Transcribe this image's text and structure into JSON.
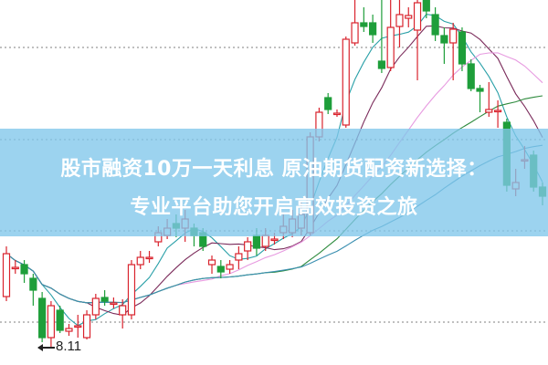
{
  "banner": {
    "line1": "股市融资10万一天利息 原油期货配资新选择：",
    "line2": "专业平台助您开启高效投资之旅"
  },
  "chart_data": {
    "type": "candlestick",
    "ylim": [
      7.92,
      11.92
    ],
    "grid": "dotted-horizontal",
    "gridlines": [
      11.4,
      10.39,
      9.39,
      8.39
    ],
    "annotation": {
      "text": "8.11",
      "value": 8.11,
      "candle_index": 5
    },
    "colors": {
      "up": "#d9232d",
      "down": "#1e9e3a",
      "grid": "#999999",
      "ma": [
        "#2aa0a8",
        "#7a2a5a",
        "#e79ae0",
        "#2e8b3e",
        "#3a8fb0"
      ]
    },
    "ma_periods": [
      5,
      10,
      20,
      30,
      45
    ],
    "ohlc": [
      [
        8.67,
        9.14,
        9.22,
        8.62
      ],
      [
        8.99,
        8.99,
        9.07,
        8.92
      ],
      [
        9.02,
        8.92,
        9.07,
        8.82
      ],
      [
        8.87,
        8.74,
        8.92,
        8.57
      ],
      [
        8.65,
        8.22,
        8.72,
        8.17
      ],
      [
        8.22,
        8.57,
        8.62,
        8.11
      ],
      [
        8.52,
        8.3,
        8.57,
        8.27
      ],
      [
        8.29,
        8.32,
        8.37,
        8.24
      ],
      [
        8.35,
        8.35,
        8.47,
        8.22
      ],
      [
        8.22,
        8.47,
        8.52,
        8.2
      ],
      [
        8.47,
        8.65,
        8.7,
        8.42
      ],
      [
        8.66,
        8.62,
        8.74,
        8.57
      ],
      [
        8.6,
        8.6,
        8.66,
        8.54
      ],
      [
        8.47,
        8.57,
        8.64,
        8.32
      ],
      [
        8.47,
        9.02,
        9.07,
        8.42
      ],
      [
        9.02,
        9.1,
        9.17,
        8.97
      ],
      [
        9.1,
        9.1,
        9.17,
        9.04
      ],
      [
        9.27,
        9.37,
        9.44,
        9.22
      ],
      [
        9.34,
        9.42,
        9.52,
        9.3
      ],
      [
        9.47,
        9.42,
        9.57,
        9.32
      ],
      [
        9.42,
        9.52,
        9.62,
        9.27
      ],
      [
        9.42,
        9.34,
        9.47,
        9.22
      ],
      [
        9.37,
        9.22,
        9.42,
        9.17
      ],
      [
        9.02,
        9.07,
        9.12,
        8.92
      ],
      [
        9.0,
        8.94,
        9.07,
        8.87
      ],
      [
        8.97,
        9.02,
        9.07,
        8.92
      ],
      [
        9.07,
        9.14,
        9.22,
        8.97
      ],
      [
        9.17,
        9.27,
        9.32,
        9.07
      ],
      [
        9.34,
        9.2,
        9.42,
        9.12
      ],
      [
        9.22,
        9.34,
        9.42,
        9.17
      ],
      [
        9.3,
        9.3,
        9.37,
        9.24
      ],
      [
        9.37,
        9.44,
        9.57,
        9.3
      ],
      [
        9.37,
        9.52,
        9.62,
        9.32
      ],
      [
        9.42,
        9.57,
        9.72,
        9.34
      ],
      [
        9.37,
        10.42,
        10.47,
        9.34
      ],
      [
        10.42,
        10.69,
        10.74,
        10.37
      ],
      [
        10.85,
        10.72,
        10.9,
        10.67
      ],
      [
        10.68,
        10.68,
        10.72,
        10.64
      ],
      [
        10.55,
        11.49,
        11.52,
        10.52
      ],
      [
        11.45,
        11.67,
        11.92,
        11.42
      ],
      [
        11.67,
        11.63,
        11.84,
        11.57
      ],
      [
        11.67,
        11.54,
        11.76,
        11.45
      ],
      [
        11.25,
        11.17,
        11.92,
        11.12
      ],
      [
        11.18,
        11.62,
        11.92,
        11.14
      ],
      [
        11.63,
        11.76,
        11.92,
        11.4
      ],
      [
        11.72,
        11.75,
        11.84,
        11.62
      ],
      [
        11.59,
        11.89,
        11.92,
        11.04
      ],
      [
        11.92,
        11.8,
        11.92,
        11.72
      ],
      [
        11.76,
        11.54,
        11.84,
        11.47
      ],
      [
        11.53,
        11.45,
        11.62,
        11.22
      ],
      [
        11.45,
        11.6,
        11.67,
        11.04
      ],
      [
        11.57,
        11.22,
        11.62,
        11.14
      ],
      [
        11.22,
        10.95,
        11.27,
        10.92
      ],
      [
        10.95,
        10.92,
        10.99,
        10.69
      ],
      [
        10.69,
        10.72,
        11.02,
        10.64
      ],
      [
        10.71,
        10.71,
        10.82,
        10.52
      ],
      [
        10.58,
        9.89,
        10.62,
        9.82
      ],
      [
        9.85,
        9.92,
        10.07,
        9.77
      ],
      [
        10.17,
        10.17,
        10.32,
        10.07
      ],
      [
        10.22,
        9.87,
        10.27,
        9.82
      ],
      [
        9.87,
        9.77,
        9.92,
        9.67
      ]
    ]
  }
}
